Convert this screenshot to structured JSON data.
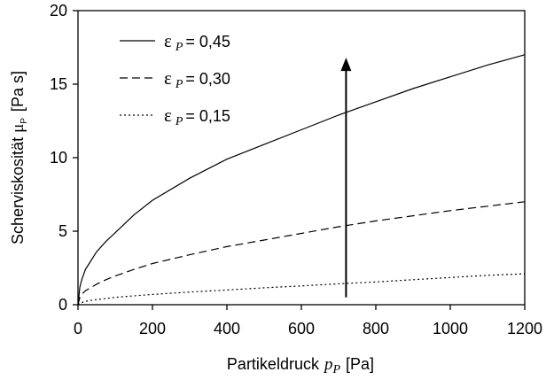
{
  "chart_data": {
    "type": "line",
    "xlabel": {
      "text": "Partikeldruck",
      "symbol": "p",
      "subscript": "P",
      "unit": "[Pa]"
    },
    "ylabel": {
      "text": "Scherviskosität",
      "symbol": "μ",
      "subscript": "P",
      "unit": "[Pa s]"
    },
    "xlim": [
      0,
      1200
    ],
    "ylim": [
      0,
      20
    ],
    "xticks": [
      0,
      200,
      400,
      600,
      800,
      1000,
      1200
    ],
    "yticks": [
      0,
      5,
      10,
      15,
      20
    ],
    "legend_position": "top-left",
    "annotation": "upward arrow at x=720 from y≈0.5 to y≈16.8",
    "series": [
      {
        "name": "ε P = 0,45",
        "symbol": "ε",
        "subscript": "P",
        "value_text": "= 0,45",
        "style": "solid",
        "x": [
          0,
          5,
          10,
          20,
          30,
          50,
          75,
          100,
          150,
          200,
          300,
          400,
          500,
          600,
          700,
          800,
          900,
          1000,
          1100,
          1200
        ],
        "y": [
          0,
          1.2,
          1.7,
          2.4,
          2.8,
          3.6,
          4.3,
          4.9,
          6.1,
          7.1,
          8.6,
          9.9,
          10.9,
          11.9,
          12.9,
          13.8,
          14.7,
          15.5,
          16.3,
          17.0
        ]
      },
      {
        "name": "ε P = 0,30",
        "symbol": "ε",
        "subscript": "P",
        "value_text": "= 0,30",
        "style": "dashed",
        "x": [
          0,
          5,
          10,
          20,
          30,
          50,
          75,
          100,
          150,
          200,
          300,
          400,
          500,
          600,
          700,
          800,
          900,
          1000,
          1100,
          1200
        ],
        "y": [
          0,
          0.5,
          0.7,
          0.95,
          1.1,
          1.4,
          1.7,
          1.95,
          2.4,
          2.8,
          3.4,
          3.95,
          4.4,
          4.85,
          5.3,
          5.7,
          6.05,
          6.4,
          6.7,
          7.0
        ]
      },
      {
        "name": "ε P = 0,15",
        "symbol": "ε",
        "subscript": "P",
        "value_text": "= 0,15",
        "style": "dotted",
        "x": [
          0,
          5,
          10,
          20,
          30,
          50,
          75,
          100,
          150,
          200,
          300,
          400,
          500,
          600,
          700,
          800,
          900,
          1000,
          1100,
          1200
        ],
        "y": [
          0,
          0.1,
          0.15,
          0.22,
          0.28,
          0.35,
          0.42,
          0.5,
          0.6,
          0.7,
          0.86,
          1.0,
          1.15,
          1.28,
          1.42,
          1.55,
          1.7,
          1.85,
          2.0,
          2.1
        ]
      }
    ]
  }
}
